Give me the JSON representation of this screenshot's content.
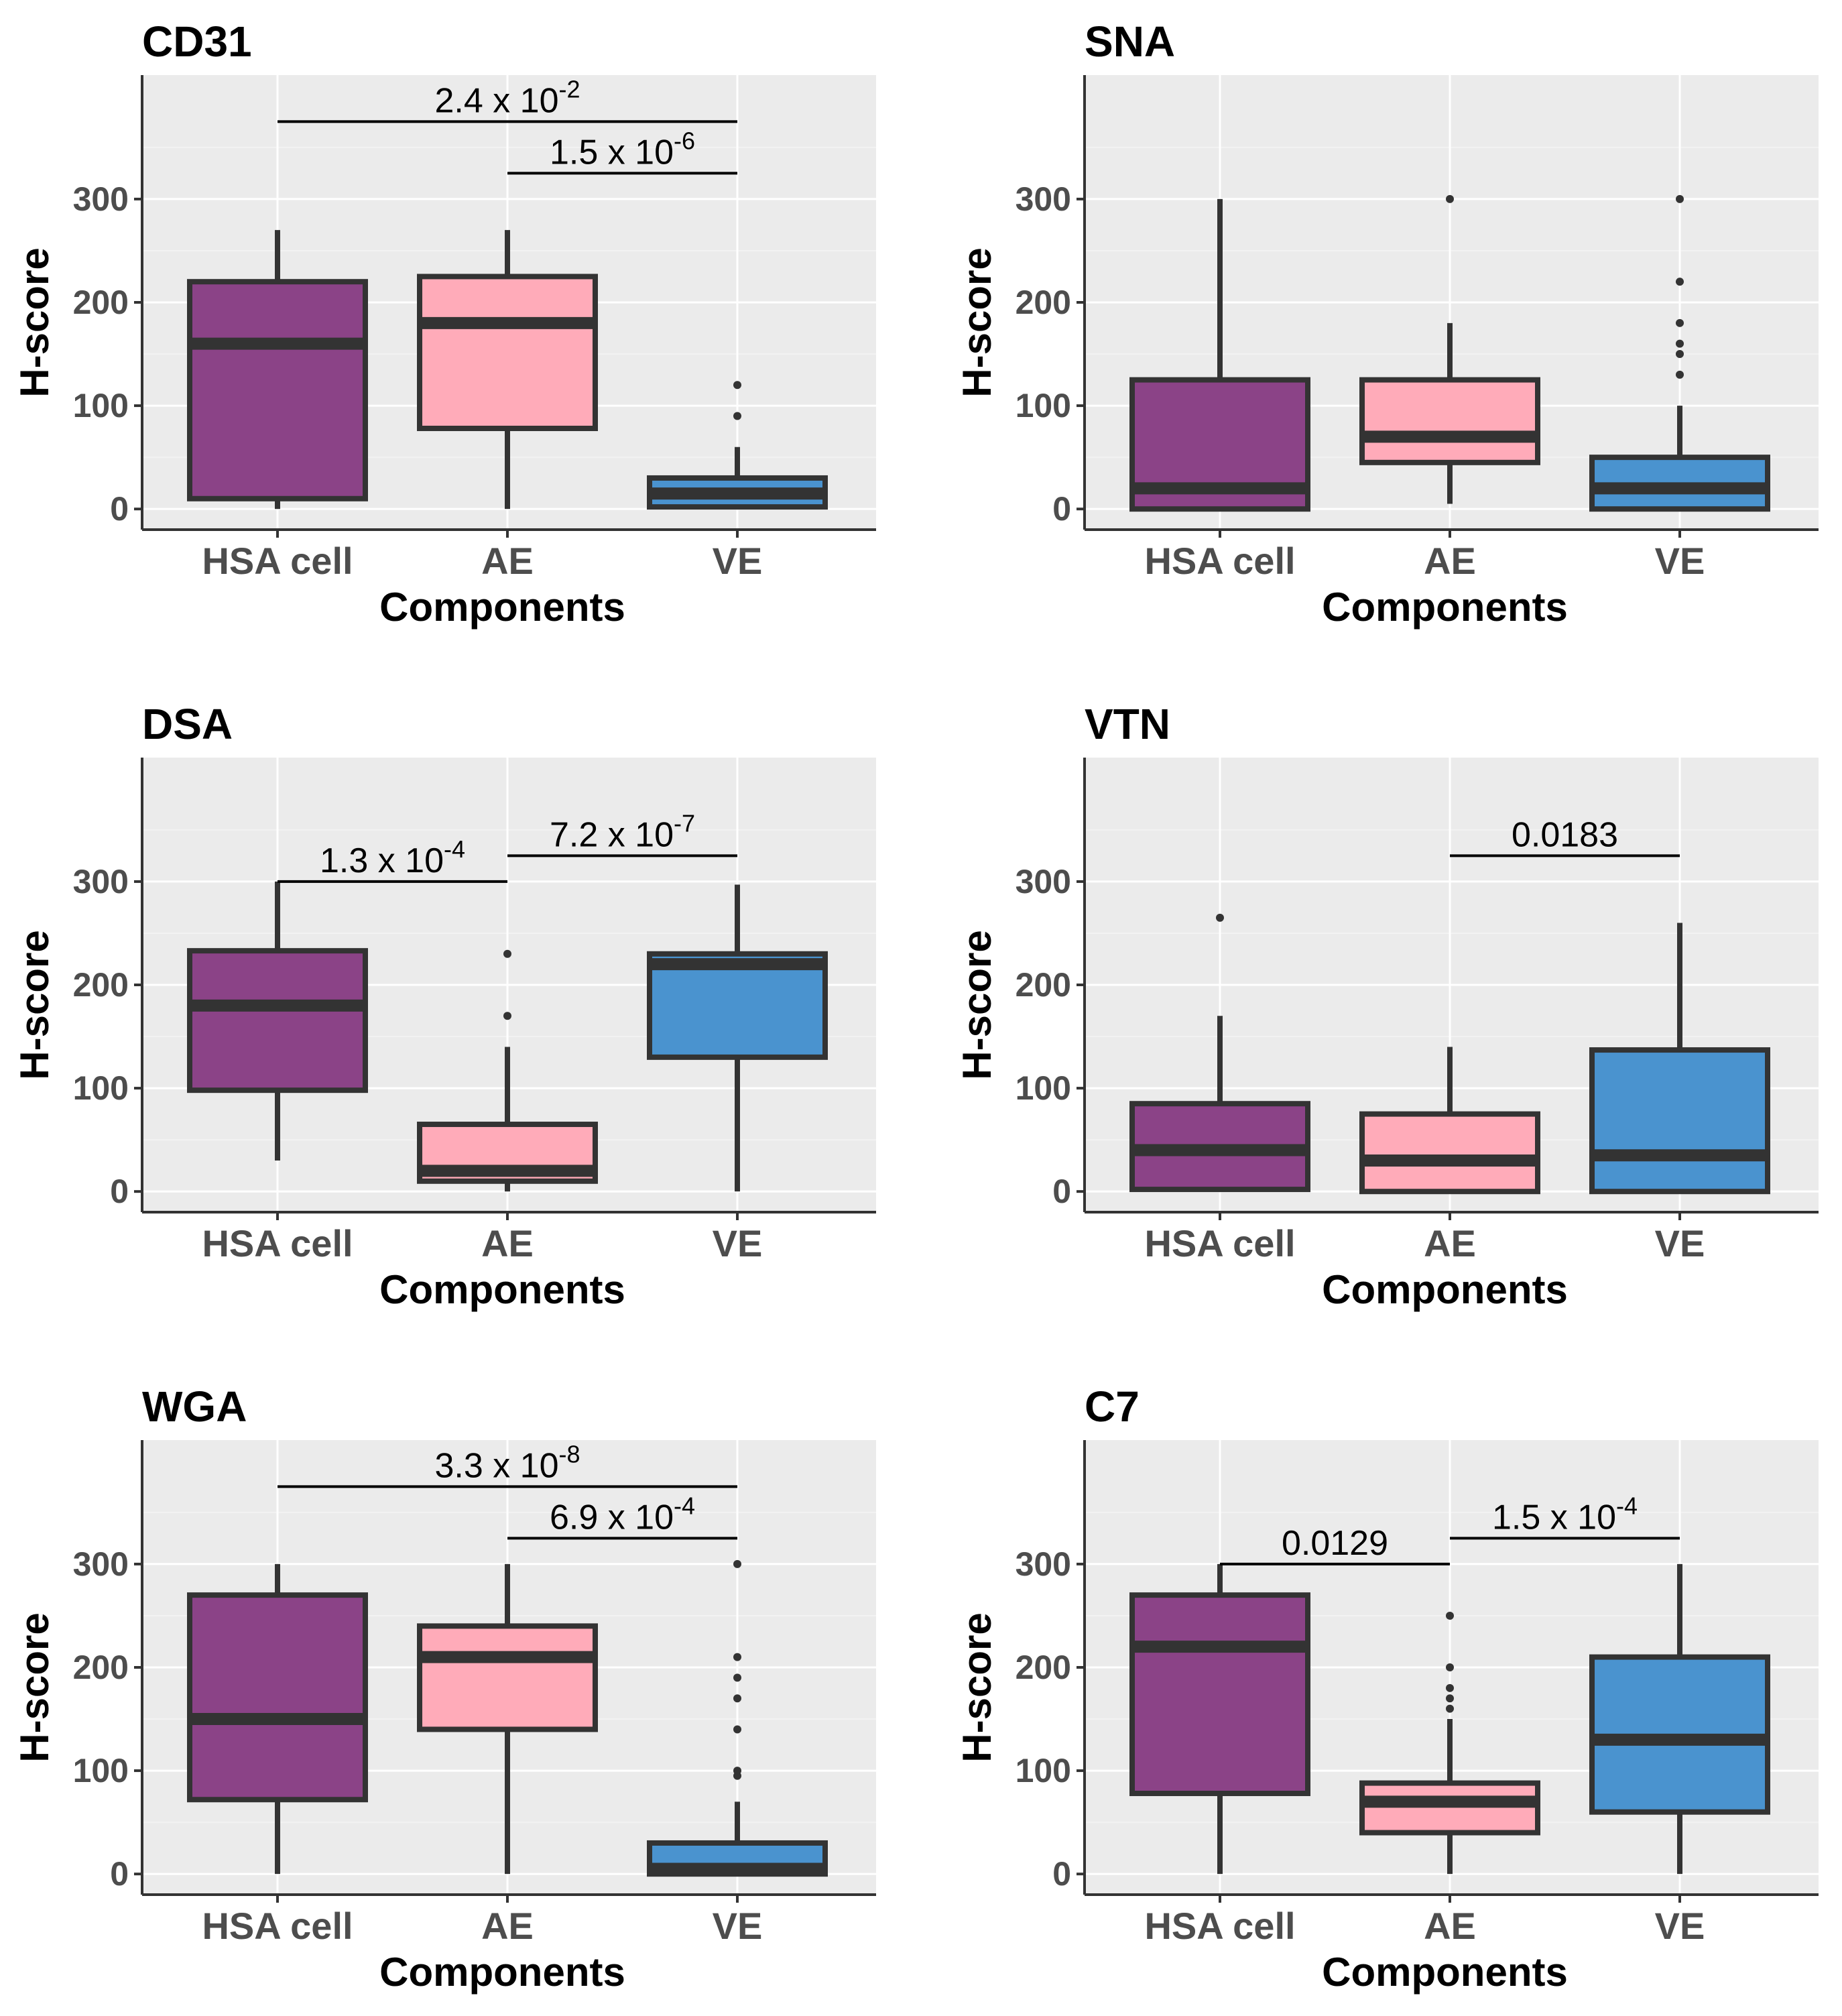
{
  "colors": {
    "panel_bg": "#ebebeb",
    "grid_major": "#ffffff",
    "grid_minor": "#f2f2f2",
    "box_line": "#333333",
    "axis_line": "#333333",
    "HSA cell": "#8b4387",
    "AE": "#ffabb9",
    "VE": "#4a93cf"
  },
  "chart_data": [
    {
      "type": "box",
      "title": "CD31",
      "xlabel": "Components",
      "ylabel": "H-score",
      "ylim": [
        -20,
        420
      ],
      "yticks": [
        0,
        100,
        200,
        300
      ],
      "categories": [
        "HSA cell",
        "AE",
        "VE"
      ],
      "boxes": [
        {
          "category": "HSA cell",
          "whisker_low": 0,
          "q1": 10,
          "median": 160,
          "q3": 220,
          "whisker_high": 270,
          "outliers": []
        },
        {
          "category": "AE",
          "whisker_low": 0,
          "q1": 78,
          "median": 180,
          "q3": 225,
          "whisker_high": 270,
          "outliers": []
        },
        {
          "category": "VE",
          "whisker_low": 0,
          "q1": 2,
          "median": 15,
          "q3": 30,
          "whisker_high": 60,
          "outliers": [
            90,
            120
          ]
        }
      ],
      "annotations": [
        {
          "from": "HSA cell",
          "to": "VE",
          "y": 375,
          "base": "2.4 x 10",
          "exp": "-2"
        },
        {
          "from": "AE",
          "to": "VE",
          "y": 325,
          "base": "1.5 x 10",
          "exp": "-6"
        }
      ]
    },
    {
      "type": "box",
      "title": "SNA",
      "xlabel": "Components",
      "ylabel": "H-score",
      "ylim": [
        -20,
        420
      ],
      "yticks": [
        0,
        100,
        200,
        300
      ],
      "categories": [
        "HSA cell",
        "AE",
        "VE"
      ],
      "boxes": [
        {
          "category": "HSA cell",
          "whisker_low": 0,
          "q1": 0,
          "median": 20,
          "q3": 125,
          "whisker_high": 300,
          "outliers": []
        },
        {
          "category": "AE",
          "whisker_low": 5,
          "q1": 45,
          "median": 70,
          "q3": 125,
          "whisker_high": 180,
          "outliers": [
            300
          ]
        },
        {
          "category": "VE",
          "whisker_low": 0,
          "q1": 0,
          "median": 20,
          "q3": 50,
          "whisker_high": 100,
          "outliers": [
            130,
            150,
            160,
            180,
            220,
            300
          ]
        }
      ],
      "annotations": []
    },
    {
      "type": "box",
      "title": "DSA",
      "xlabel": "Components",
      "ylabel": "H-score",
      "ylim": [
        -20,
        420
      ],
      "yticks": [
        0,
        100,
        200,
        300
      ],
      "categories": [
        "HSA cell",
        "AE",
        "VE"
      ],
      "boxes": [
        {
          "category": "HSA cell",
          "whisker_low": 30,
          "q1": 98,
          "median": 180,
          "q3": 233,
          "whisker_high": 300,
          "outliers": []
        },
        {
          "category": "AE",
          "whisker_low": 0,
          "q1": 10,
          "median": 20,
          "q3": 65,
          "whisker_high": 140,
          "outliers": [
            170,
            230
          ]
        },
        {
          "category": "VE",
          "whisker_low": 0,
          "q1": 130,
          "median": 220,
          "q3": 230,
          "whisker_high": 297,
          "outliers": []
        }
      ],
      "annotations": [
        {
          "from": "HSA cell",
          "to": "AE",
          "y": 300,
          "base": "1.3 x 10",
          "exp": "-4"
        },
        {
          "from": "AE",
          "to": "VE",
          "y": 325,
          "base": "7.2 x 10",
          "exp": "-7"
        }
      ]
    },
    {
      "type": "box",
      "title": "VTN",
      "xlabel": "Components",
      "ylabel": "H-score",
      "ylim": [
        -20,
        420
      ],
      "yticks": [
        0,
        100,
        200,
        300
      ],
      "categories": [
        "HSA cell",
        "AE",
        "VE"
      ],
      "boxes": [
        {
          "category": "HSA cell",
          "whisker_low": 0,
          "q1": 2,
          "median": 40,
          "q3": 85,
          "whisker_high": 170,
          "outliers": [
            265
          ]
        },
        {
          "category": "AE",
          "whisker_low": 0,
          "q1": 0,
          "median": 30,
          "q3": 75,
          "whisker_high": 140,
          "outliers": []
        },
        {
          "category": "VE",
          "whisker_low": 0,
          "q1": 0,
          "median": 35,
          "q3": 137,
          "whisker_high": 260,
          "outliers": []
        }
      ],
      "annotations": [
        {
          "from": "AE",
          "to": "VE",
          "y": 325,
          "base": "0.0183",
          "exp": ""
        }
      ]
    },
    {
      "type": "box",
      "title": "WGA",
      "xlabel": "Components",
      "ylabel": "H-score",
      "ylim": [
        -20,
        420
      ],
      "yticks": [
        0,
        100,
        200,
        300
      ],
      "categories": [
        "HSA cell",
        "AE",
        "VE"
      ],
      "boxes": [
        {
          "category": "HSA cell",
          "whisker_low": 0,
          "q1": 72,
          "median": 150,
          "q3": 270,
          "whisker_high": 300,
          "outliers": []
        },
        {
          "category": "AE",
          "whisker_low": 0,
          "q1": 140,
          "median": 210,
          "q3": 240,
          "whisker_high": 300,
          "outliers": []
        },
        {
          "category": "VE",
          "whisker_low": 0,
          "q1": 0,
          "median": 5,
          "q3": 30,
          "whisker_high": 70,
          "outliers": [
            95,
            100,
            140,
            170,
            190,
            210,
            300
          ]
        }
      ],
      "annotations": [
        {
          "from": "HSA cell",
          "to": "VE",
          "y": 375,
          "base": "3.3 x 10",
          "exp": "-8"
        },
        {
          "from": "AE",
          "to": "VE",
          "y": 325,
          "base": "6.9 x 10",
          "exp": "-4"
        }
      ]
    },
    {
      "type": "box",
      "title": "C7",
      "xlabel": "Components",
      "ylabel": "H-score",
      "ylim": [
        -20,
        420
      ],
      "yticks": [
        0,
        100,
        200,
        300
      ],
      "categories": [
        "HSA cell",
        "AE",
        "VE"
      ],
      "boxes": [
        {
          "category": "HSA cell",
          "whisker_low": 0,
          "q1": 78,
          "median": 220,
          "q3": 270,
          "whisker_high": 300,
          "outliers": []
        },
        {
          "category": "AE",
          "whisker_low": 0,
          "q1": 40,
          "median": 70,
          "q3": 88,
          "whisker_high": 150,
          "outliers": [
            160,
            170,
            180,
            200,
            250
          ]
        },
        {
          "category": "VE",
          "whisker_low": 0,
          "q1": 60,
          "median": 130,
          "q3": 210,
          "whisker_high": 300,
          "outliers": []
        }
      ],
      "annotations": [
        {
          "from": "HSA cell",
          "to": "AE",
          "y": 300,
          "base": "0.0129",
          "exp": ""
        },
        {
          "from": "AE",
          "to": "VE",
          "y": 325,
          "base": "1.5 x 10",
          "exp": "-4"
        }
      ]
    }
  ]
}
